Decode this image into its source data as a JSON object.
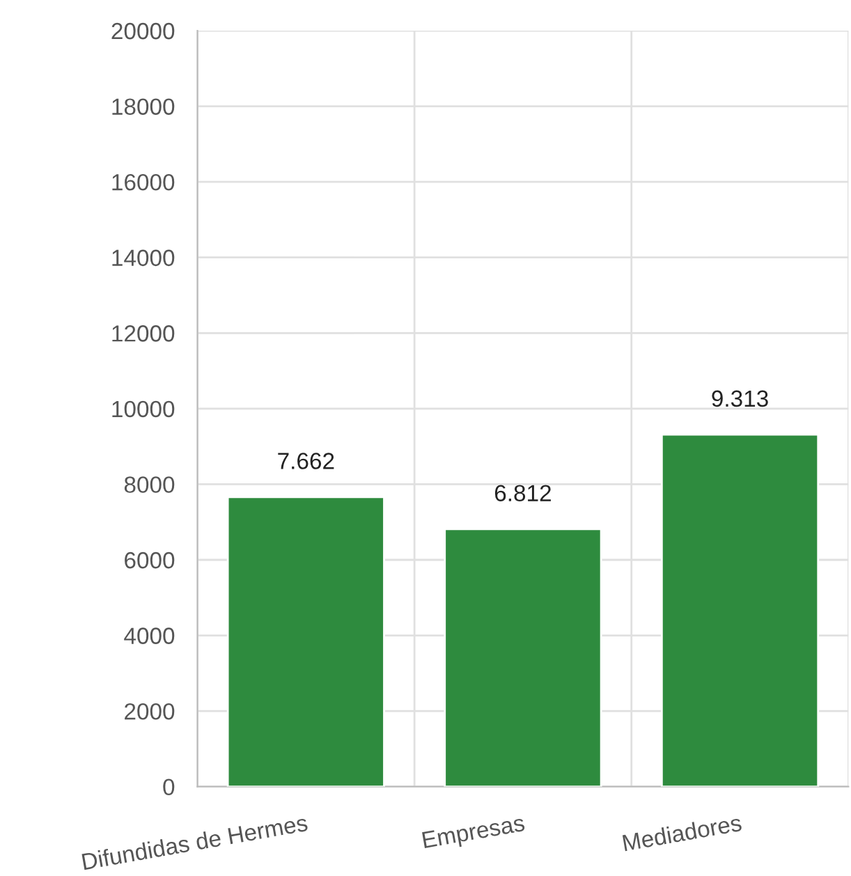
{
  "chart_data": {
    "type": "bar",
    "categories": [
      "Difundidas de Hermes",
      "Empresas",
      "Mediadores"
    ],
    "values": [
      7662,
      6812,
      9313
    ],
    "value_labels": [
      "7.662",
      "6.812",
      "9.313"
    ],
    "color": "#2e8b3e",
    "ylim": [
      0,
      20000
    ],
    "yticks": [
      0,
      2000,
      4000,
      6000,
      8000,
      10000,
      12000,
      14000,
      16000,
      18000,
      20000
    ],
    "grid": true
  }
}
